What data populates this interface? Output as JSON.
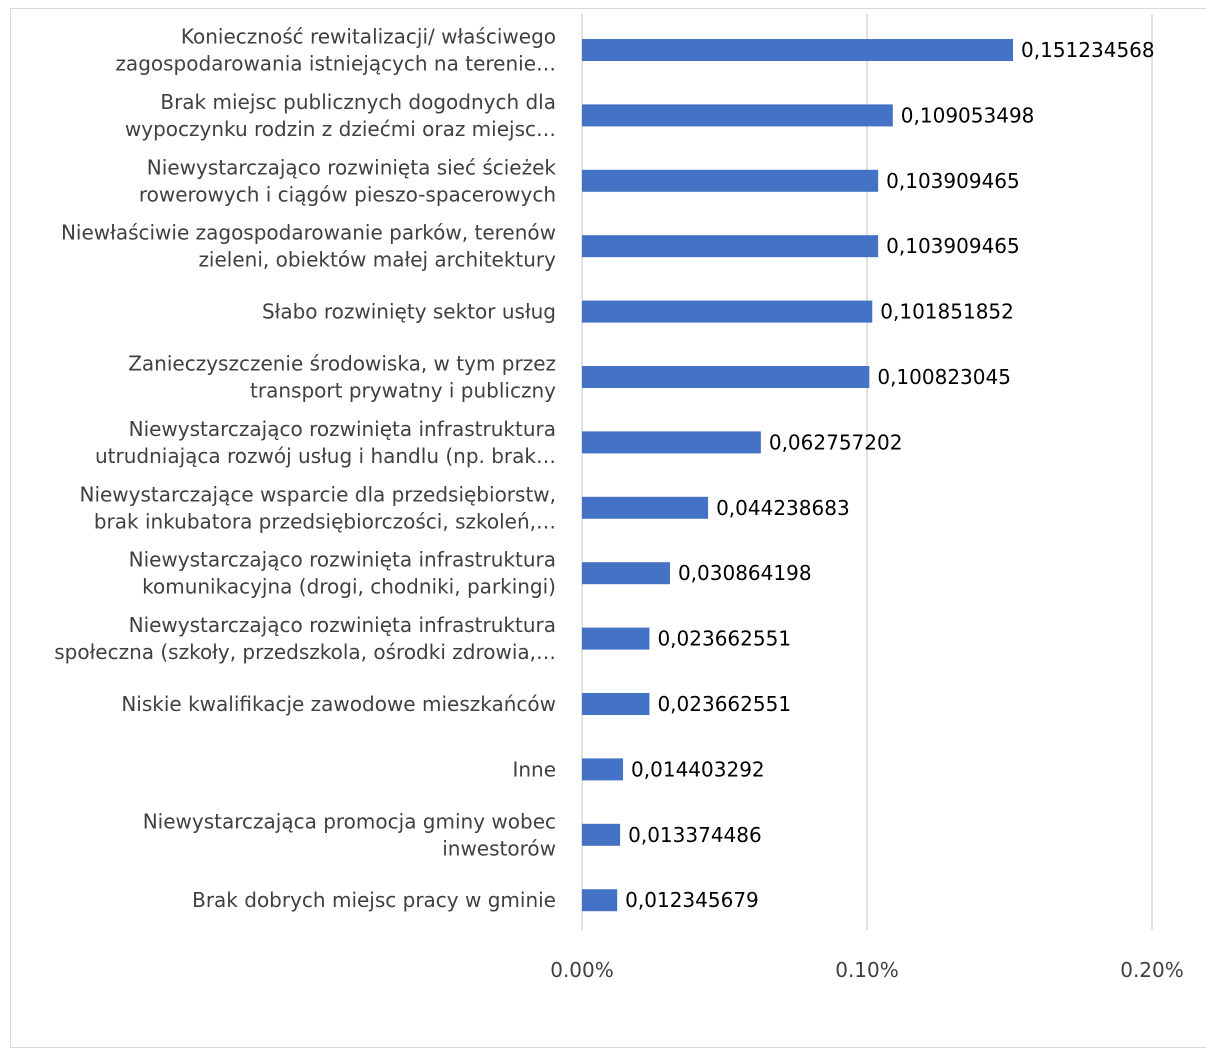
{
  "chart_data": {
    "type": "bar",
    "orientation": "horizontal",
    "categories": [
      [
        "Konieczność rewitalizacji/ właściwego",
        "zagospodarowania  istniejących  na terenie…"
      ],
      [
        "Brak miejsc publicznych dogodnych dla",
        "wypoczynku rodzin z dziećmi oraz miejsc…"
      ],
      [
        "Niewystarczająco rozwinięta sieć ścieżek",
        "rowerowych i ciągów pieszo-spacerowych"
      ],
      [
        "Niewłaściwie zagospodarowanie parków, terenów",
        "zieleni, obiektów małej architektury"
      ],
      [
        "Słabo rozwinięty sektor usług"
      ],
      [
        "Zanieczyszczenie środowiska, w tym przez",
        "transport prywatny i publiczny"
      ],
      [
        "Niewystarczająco rozwinięta infrastruktura",
        "utrudniająca rozwój usług i handlu (np. brak…"
      ],
      [
        "Niewystarczające wsparcie dla przedsiębiorstw,",
        "brak inkubatora przedsiębiorczości, szkoleń,…"
      ],
      [
        "Niewystarczająco rozwinięta infrastruktura",
        "komunikacyjna (drogi, chodniki, parkingi)"
      ],
      [
        "Niewystarczająco rozwinięta infrastruktura",
        "społeczna (szkoły, przedszkola, ośrodki zdrowia,…"
      ],
      [
        "Niskie kwalifikacje zawodowe mieszkańców"
      ],
      [
        "Inne"
      ],
      [
        "Niewystarczająca promocja gminy wobec",
        "inwestorów"
      ],
      [
        "Brak dobrych miejsc pracy w gminie"
      ]
    ],
    "values": [
      0.151234568,
      0.109053498,
      0.103909465,
      0.103909465,
      0.101851852,
      0.100823045,
      0.062757202,
      0.044238683,
      0.030864198,
      0.023662551,
      0.023662551,
      0.014403292,
      0.013374486,
      0.012345679
    ],
    "data_labels": [
      "0,151234568",
      "0,109053498",
      "0,103909465",
      "0,103909465",
      "0,101851852",
      "0,100823045",
      "0,062757202",
      "0,044238683",
      "0,030864198",
      "0,023662551",
      "0,023662551",
      "0,014403292",
      "0,013374486",
      "0,012345679"
    ],
    "xticks": [
      "0.00%",
      "0.10%",
      "0.20%"
    ],
    "xlim": [
      0,
      0.2
    ],
    "grid": "vertical",
    "bar_color": "#4472C4",
    "grid_color": "#d9d9d9"
  }
}
